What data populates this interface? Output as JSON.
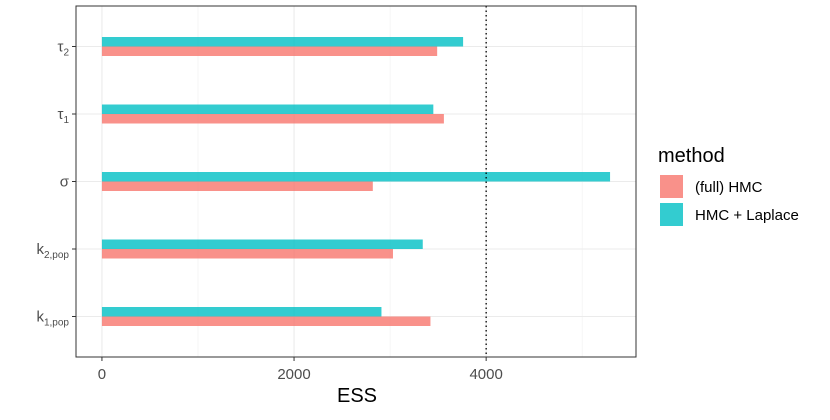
{
  "chart_data": {
    "type": "bar",
    "orientation": "horizontal",
    "categories": [
      {
        "base": "k",
        "sub": "1,pop"
      },
      {
        "base": "k",
        "sub": "2,pop"
      },
      {
        "base": "σ",
        "sub": ""
      },
      {
        "base": "τ",
        "sub": "1"
      },
      {
        "base": "τ",
        "sub": "2"
      }
    ],
    "series": [
      {
        "name": "(full) HMC",
        "color": "#F8766D",
        "values": [
          3420,
          3030,
          2820,
          3560,
          3490
        ]
      },
      {
        "name": "HMC + Laplace",
        "color": "#00BFC4",
        "values": [
          2910,
          3340,
          5290,
          3450,
          3760
        ]
      }
    ],
    "xlabel": "ESS",
    "ylabel": "",
    "xlim": [
      -270,
      5560
    ],
    "xticks": [
      0,
      2000,
      4000
    ],
    "xtick_labels": [
      "0",
      "2000",
      "4000"
    ],
    "reference_line": {
      "x": 4000,
      "style": "dotted"
    },
    "grid": true,
    "legend": {
      "title": "method",
      "placement": "right"
    }
  }
}
